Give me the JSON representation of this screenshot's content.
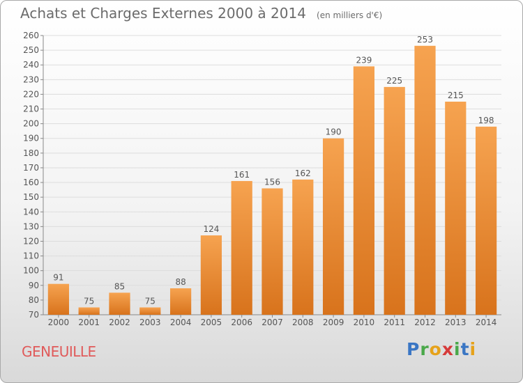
{
  "header": {
    "title": "Achats et Charges Externes 2000 à 2014",
    "unit": "(en milliers d'€)"
  },
  "footer": {
    "town": "GENEUILLE",
    "logo": [
      "P",
      "r",
      "o",
      "x",
      "i",
      "t",
      "i"
    ]
  },
  "colors": {
    "bar_top": "#f6a350",
    "bar_bottom": "#d8731c",
    "town_text": "#e05a5a",
    "grid": "#dddddd"
  },
  "chart_data": {
    "type": "bar",
    "title": "Achats et Charges Externes 2000 à 2014",
    "subtitle": "(en milliers d'€)",
    "xlabel": "",
    "ylabel": "",
    "categories": [
      "2000",
      "2001",
      "2002",
      "2003",
      "2004",
      "2005",
      "2006",
      "2007",
      "2008",
      "2009",
      "2010",
      "2011",
      "2012",
      "2013",
      "2014"
    ],
    "values": [
      91,
      75,
      85,
      75,
      88,
      124,
      161,
      156,
      162,
      190,
      239,
      225,
      253,
      215,
      198
    ],
    "ylim": [
      70,
      260
    ],
    "yticks": [
      70,
      80,
      90,
      100,
      110,
      120,
      130,
      140,
      150,
      160,
      170,
      180,
      190,
      200,
      210,
      220,
      230,
      240,
      250,
      260
    ],
    "grid": true,
    "data_labels": true,
    "legend": "none"
  }
}
